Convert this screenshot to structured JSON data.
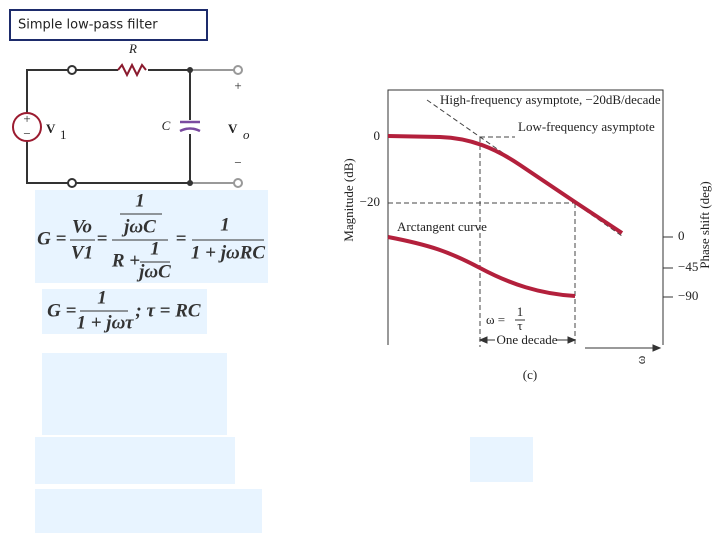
{
  "title": "Simple low-pass filter",
  "circuit": {
    "resistor": "R",
    "capacitor": "C",
    "source": "V",
    "source_sub": "1",
    "source_plus": "+",
    "source_minus": "−",
    "output": "V",
    "output_sub": "o",
    "out_plus": "+",
    "out_minus": "−"
  },
  "formulas": [
    {
      "lhs": "G",
      "eq": "=",
      "ratio_num": "Vo",
      "ratio_den": "V1",
      "num_num": "1",
      "num_den": "jωC",
      "den_left": "R +",
      "den_num": "1",
      "den_den": "jωC",
      "result_num": "1",
      "result_den": "1 + jωRC"
    },
    {
      "lhs": "G",
      "eq": "=",
      "num": "1",
      "den": "1 + jωτ",
      "tail": "; τ = RC"
    }
  ],
  "plot": {
    "high_asymptote": "High-frequency asymptote, −20dB/decade",
    "low_asymptote": "Low-frequency asymptote",
    "arctangent": "Arctangent curve",
    "y_label": "Magnitude (dB)",
    "y2_label": "Phase shift (deg)",
    "mag_ticks": [
      "0",
      "−20"
    ],
    "phase_ticks": [
      "0",
      "−45",
      "−90"
    ],
    "corner_lhs": "ω =",
    "corner_num": "1",
    "corner_den": "τ",
    "decade": "One decade",
    "x_label": "ω",
    "caption": "(c)"
  }
}
